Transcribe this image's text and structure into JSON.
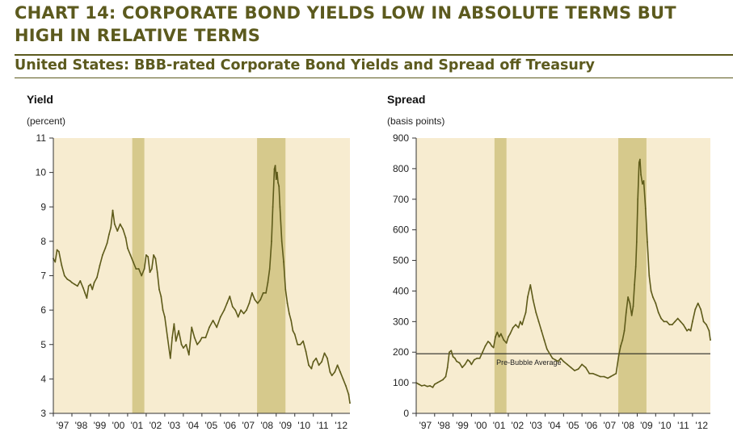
{
  "header": {
    "title_line1": "CHART 14: CORPORATE BOND YIELDS LOW IN ABSOLUTE TERMS BUT",
    "title_line2": "HIGH IN RELATIVE TERMS",
    "subtitle": "United States: BBB-rated Corporate Bond Yields and Spread off Treasury"
  },
  "colors": {
    "title": "#5c5a1e",
    "plot_background": "#f7ecd0",
    "recession_band": "#d6c98c",
    "series_line": "#5e5b1a",
    "axis": "#333333"
  },
  "chart_data": [
    {
      "type": "line",
      "title": "Yield",
      "unit_label": "(percent)",
      "ylim": [
        3,
        11
      ],
      "yticks": [
        "11",
        "10",
        "9",
        "8",
        "7",
        "6",
        "5",
        "4",
        "3"
      ],
      "xticks": [
        "'97",
        "'98",
        "'99",
        "'00",
        "'01",
        "'02",
        "'03",
        "'04",
        "'05",
        "'06",
        "'07",
        "'08",
        "'09",
        "'10",
        "'11",
        "'12"
      ],
      "xlim": [
        1997.0,
        2012.97
      ],
      "recession_bands": [
        [
          2001.25,
          2001.9
        ],
        [
          2007.97,
          2009.5
        ]
      ],
      "grid": false,
      "series": [
        {
          "x": [
            1997.0,
            1997.1,
            1997.2,
            1997.3,
            1997.45,
            1997.6,
            1997.75,
            1997.9,
            1998.0,
            1998.15,
            1998.3,
            1998.45,
            1998.6,
            1998.7,
            1998.8,
            1998.9,
            1999.0,
            1999.1,
            1999.2,
            1999.35,
            1999.5,
            1999.65,
            1999.8,
            1999.9,
            2000.0,
            2000.1,
            2000.2,
            2000.3,
            2000.45,
            2000.6,
            2000.75,
            2000.9,
            2001.0,
            2001.15,
            2001.3,
            2001.45,
            2001.6,
            2001.75,
            2001.9,
            2002.0,
            2002.1,
            2002.2,
            2002.3,
            2002.4,
            2002.5,
            2002.6,
            2002.7,
            2002.8,
            2002.9,
            2003.0,
            2003.15,
            2003.3,
            2003.4,
            2003.5,
            2003.6,
            2003.75,
            2003.9,
            2004.0,
            2004.15,
            2004.3,
            2004.45,
            2004.6,
            2004.75,
            2004.9,
            2005.0,
            2005.2,
            2005.4,
            2005.6,
            2005.8,
            2006.0,
            2006.2,
            2006.35,
            2006.5,
            2006.65,
            2006.8,
            2006.95,
            2007.1,
            2007.25,
            2007.4,
            2007.55,
            2007.7,
            2007.85,
            2008.0,
            2008.15,
            2008.3,
            2008.45,
            2008.55,
            2008.65,
            2008.75,
            2008.82,
            2008.9,
            2008.95,
            2009.0,
            2009.05,
            2009.1,
            2009.15,
            2009.2,
            2009.3,
            2009.4,
            2009.5,
            2009.6,
            2009.7,
            2009.8,
            2009.9,
            2010.0,
            2010.15,
            2010.3,
            2010.45,
            2010.6,
            2010.75,
            2010.9,
            2011.0,
            2011.15,
            2011.3,
            2011.45,
            2011.6,
            2011.75,
            2011.9,
            2012.0,
            2012.15,
            2012.3,
            2012.45,
            2012.6,
            2012.75,
            2012.9,
            2012.97
          ],
          "values": [
            7.5,
            7.4,
            7.75,
            7.7,
            7.3,
            7.0,
            6.9,
            6.85,
            6.8,
            6.75,
            6.7,
            6.85,
            6.65,
            6.5,
            6.35,
            6.7,
            6.75,
            6.6,
            6.8,
            6.95,
            7.3,
            7.6,
            7.8,
            7.95,
            8.2,
            8.4,
            8.9,
            8.5,
            8.3,
            8.5,
            8.35,
            8.1,
            7.8,
            7.6,
            7.4,
            7.2,
            7.2,
            7.0,
            7.2,
            7.6,
            7.55,
            7.1,
            7.2,
            7.6,
            7.5,
            7.1,
            6.6,
            6.4,
            6.0,
            5.8,
            5.2,
            4.6,
            5.2,
            5.6,
            5.1,
            5.4,
            5.0,
            4.9,
            5.0,
            4.7,
            5.5,
            5.2,
            5.0,
            5.1,
            5.2,
            5.2,
            5.5,
            5.7,
            5.5,
            5.8,
            6.0,
            6.2,
            6.4,
            6.1,
            6.0,
            5.8,
            6.0,
            5.9,
            6.0,
            6.2,
            6.5,
            6.3,
            6.2,
            6.3,
            6.5,
            6.5,
            6.8,
            7.2,
            8.0,
            9.0,
            10.1,
            10.2,
            9.8,
            10.0,
            9.7,
            9.6,
            9.0,
            8.0,
            7.4,
            6.6,
            6.2,
            5.9,
            5.7,
            5.4,
            5.3,
            5.0,
            5.0,
            5.1,
            4.8,
            4.4,
            4.3,
            4.5,
            4.6,
            4.4,
            4.5,
            4.75,
            4.6,
            4.2,
            4.1,
            4.2,
            4.4,
            4.2,
            4.0,
            3.8,
            3.55,
            3.3
          ]
        }
      ]
    },
    {
      "type": "line",
      "title": "Spread",
      "unit_label": "(basis points)",
      "ylim": [
        0,
        900
      ],
      "yticks": [
        "900",
        "800",
        "700",
        "600",
        "500",
        "400",
        "300",
        "200",
        "100",
        "0"
      ],
      "xticks": [
        "'97",
        "'98",
        "'99",
        "'00",
        "'01",
        "'02",
        "'03",
        "'04",
        "'05",
        "'06",
        "'07",
        "'08",
        "'09",
        "'10",
        "'11",
        "'12"
      ],
      "xlim": [
        1997.0,
        2012.97
      ],
      "recession_bands": [
        [
          2001.25,
          2001.9
        ],
        [
          2007.97,
          2009.5
        ]
      ],
      "grid": false,
      "reference_line": {
        "value": 195,
        "label": "Pre-Bubble Average"
      },
      "series": [
        {
          "x": [
            1997.0,
            1997.15,
            1997.3,
            1997.45,
            1997.6,
            1997.75,
            1997.9,
            1998.0,
            1998.15,
            1998.3,
            1998.45,
            1998.6,
            1998.7,
            1998.8,
            1998.9,
            1999.0,
            1999.1,
            1999.2,
            1999.35,
            1999.5,
            1999.65,
            1999.8,
            1999.9,
            2000.0,
            2000.15,
            2000.3,
            2000.45,
            2000.6,
            2000.75,
            2000.9,
            2001.0,
            2001.1,
            2001.2,
            2001.3,
            2001.4,
            2001.5,
            2001.6,
            2001.75,
            2001.9,
            2002.0,
            2002.1,
            2002.25,
            2002.4,
            2002.55,
            2002.65,
            2002.75,
            2002.85,
            2002.95,
            2003.05,
            2003.2,
            2003.35,
            2003.5,
            2003.65,
            2003.8,
            2003.95,
            2004.1,
            2004.25,
            2004.4,
            2004.55,
            2004.7,
            2004.85,
            2005.0,
            2005.2,
            2005.4,
            2005.6,
            2005.8,
            2006.0,
            2006.2,
            2006.4,
            2006.6,
            2006.8,
            2007.0,
            2007.2,
            2007.4,
            2007.55,
            2007.7,
            2007.85,
            2008.0,
            2008.1,
            2008.2,
            2008.3,
            2008.4,
            2008.5,
            2008.6,
            2008.7,
            2008.78,
            2008.85,
            2008.92,
            2008.97,
            2009.03,
            2009.1,
            2009.15,
            2009.2,
            2009.28,
            2009.35,
            2009.45,
            2009.55,
            2009.65,
            2009.75,
            2009.85,
            2010.0,
            2010.15,
            2010.3,
            2010.45,
            2010.6,
            2010.75,
            2010.9,
            2011.05,
            2011.2,
            2011.35,
            2011.5,
            2011.6,
            2011.7,
            2011.8,
            2011.9,
            2012.0,
            2012.15,
            2012.3,
            2012.45,
            2012.6,
            2012.75,
            2012.9,
            2012.97
          ],
          "values": [
            100,
            95,
            90,
            92,
            88,
            90,
            85,
            95,
            100,
            105,
            110,
            120,
            150,
            200,
            205,
            185,
            180,
            170,
            165,
            150,
            160,
            175,
            170,
            160,
            175,
            180,
            180,
            200,
            220,
            235,
            230,
            220,
            215,
            250,
            265,
            250,
            260,
            240,
            230,
            250,
            260,
            280,
            290,
            280,
            300,
            290,
            310,
            330,
            380,
            420,
            370,
            330,
            300,
            270,
            240,
            210,
            195,
            180,
            175,
            170,
            180,
            170,
            160,
            150,
            140,
            145,
            160,
            150,
            130,
            130,
            125,
            120,
            120,
            115,
            120,
            125,
            130,
            190,
            220,
            240,
            270,
            330,
            380,
            360,
            320,
            350,
            420,
            480,
            560,
            700,
            820,
            830,
            780,
            750,
            760,
            670,
            560,
            450,
            400,
            380,
            360,
            330,
            310,
            300,
            300,
            290,
            290,
            300,
            310,
            300,
            290,
            280,
            270,
            275,
            270,
            300,
            340,
            360,
            340,
            300,
            290,
            270,
            240
          ]
        }
      ]
    }
  ]
}
